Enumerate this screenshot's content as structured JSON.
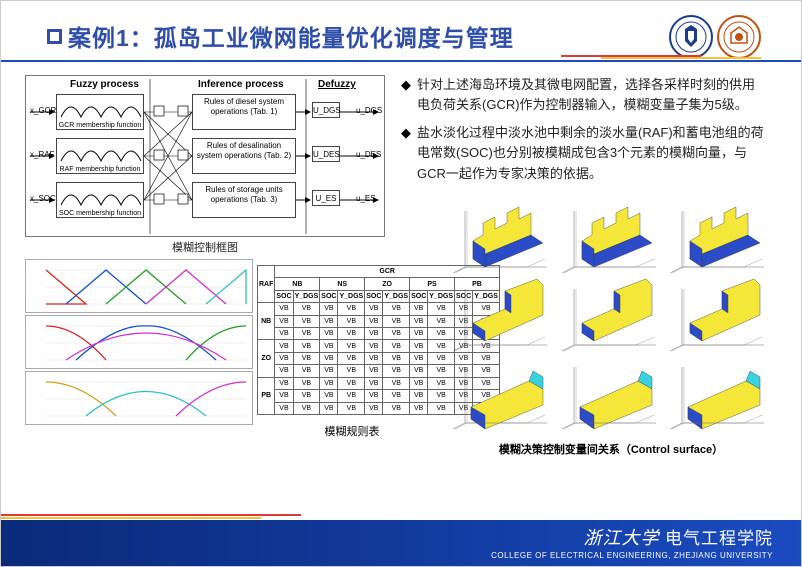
{
  "title": "案例1：孤岛工业微网能量优化调度与管理",
  "colors": {
    "title": "#2e4ea8",
    "accent_blue": "#0a2a7a",
    "accent_light_blue": "#1a4bbf",
    "accent_red": "#d93a3a",
    "accent_yellow": "#f4c430",
    "surface_yellow": "#f5e63a",
    "surface_blue": "#2b4bc7",
    "surface_cyan": "#39d2e0",
    "grid": "#cccccc"
  },
  "block_diagram": {
    "caption": "模糊控制框图",
    "columns": {
      "fuzzy": "Fuzzy process",
      "inference": "Inference process",
      "defuzzy": "Defuzzy"
    },
    "inputs": [
      "x_GCR",
      "x_RAF",
      "x_SOC"
    ],
    "mem_funcs": [
      "GCR membership function",
      "RAF membership function",
      "SOC membership function"
    ],
    "rules": [
      "Rules of diesel system operations (Tab. 1)",
      "Rules of desalination system operations (Tab. 2)",
      "Rules of storage units operations (Tab. 3)"
    ],
    "outputs_mid": [
      "U_DGS",
      "U_DES",
      "U_ES"
    ],
    "outputs": [
      "u_DGS",
      "u_DES",
      "u_ES"
    ]
  },
  "bullets": [
    "针对上述海岛环境及其微电网配置，选择各采样时刻的供用电负荷关系(GCR)作为控制器输入，模糊变量子集为5级。",
    "盐水淡化过程中淡水池中剩余的淡水量(RAF)和蓄电池组的荷电常数(SOC)也分别被模糊成包含3个元素的模糊向量，与GCR一起作为专家决策的依据。"
  ],
  "membership": {
    "curve_colors": [
      "#e02020",
      "#1050d0",
      "#20a020",
      "#d030d0",
      "#30c0c0",
      "#d0a020"
    ]
  },
  "rules_table": {
    "caption": "模糊规则表",
    "top_header": "GCR",
    "left_header": "RAF",
    "gcr_levels": [
      "NB",
      "NS",
      "ZO",
      "PS",
      "PB"
    ],
    "sub_cols": [
      "SOC",
      "Y_DGS",
      "SOC",
      "Y_DGS",
      "SOC",
      "Y_DGS",
      "SOC",
      "Y_DGS",
      "SOC",
      "Y_DGS"
    ],
    "raf_levels": [
      "NB",
      "ZO",
      "PB"
    ],
    "cell": "VB"
  },
  "surfaces": {
    "caption": "模糊决策控制变量间关系（Control surface）",
    "rows": 3,
    "cols": 3
  },
  "footer": {
    "zh_brand": "浙江大学",
    "zh_college": "电气工程学院",
    "en": "COLLEGE OF ELECTRICAL ENGINEERING, ZHEJIANG UNIVERSITY"
  }
}
